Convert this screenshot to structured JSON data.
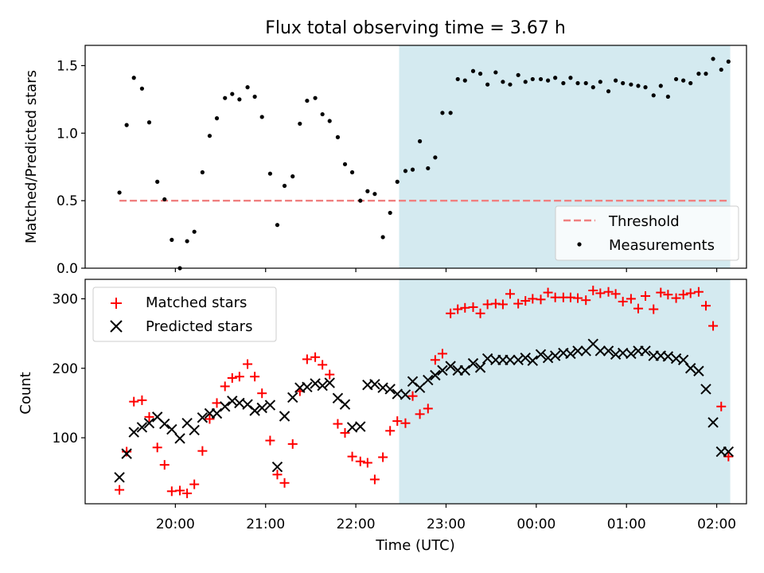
{
  "chart_data": {
    "title": "Flux total observing time = 3.67 h",
    "xlabel": "Time (UTC)",
    "x_ticks": [
      {
        "t": 20.0,
        "label": "20:00"
      },
      {
        "t": 21.0,
        "label": "21:00"
      },
      {
        "t": 22.0,
        "label": "22:00"
      },
      {
        "t": 23.0,
        "label": "23:00"
      },
      {
        "t": 24.0,
        "label": "00:00"
      },
      {
        "t": 25.0,
        "label": "01:00"
      },
      {
        "t": 26.0,
        "label": "02:00"
      }
    ],
    "x_range": [
      19.0,
      26.33
    ],
    "highlight_span": [
      22.48,
      26.15
    ],
    "highlight_color": "#d4eaf0",
    "x": [
      19.38,
      19.46,
      19.54,
      19.63,
      19.71,
      19.8,
      19.88,
      19.96,
      20.05,
      20.13,
      20.21,
      20.3,
      20.38,
      20.46,
      20.55,
      20.63,
      20.71,
      20.8,
      20.88,
      20.96,
      21.05,
      21.13,
      21.21,
      21.3,
      21.38,
      21.46,
      21.55,
      21.63,
      21.71,
      21.8,
      21.88,
      21.96,
      22.05,
      22.13,
      22.21,
      22.3,
      22.38,
      22.46,
      22.55,
      22.63,
      22.71,
      22.8,
      22.88,
      22.96,
      23.05,
      23.13,
      23.21,
      23.3,
      23.38,
      23.46,
      23.55,
      23.63,
      23.71,
      23.8,
      23.88,
      23.96,
      24.05,
      24.13,
      24.21,
      24.3,
      24.38,
      24.46,
      24.55,
      24.63,
      24.71,
      24.8,
      24.88,
      24.96,
      25.05,
      25.13,
      25.21,
      25.3,
      25.38,
      25.46,
      25.55,
      25.63,
      25.71,
      25.8,
      25.88,
      25.96,
      26.05,
      26.13
    ],
    "panels": [
      {
        "type": "scatter",
        "ylabel": "Matched/Predicted stars",
        "ylim": [
          0.0,
          1.65
        ],
        "y_ticks": [
          0.0,
          0.5,
          1.0,
          1.5
        ],
        "y_tick_labels": [
          "0.0",
          "0.5",
          "1.0",
          "1.5"
        ],
        "legend_position": "lower-right",
        "threshold": {
          "name": "Threshold",
          "value": 0.5,
          "x_range": [
            19.38,
            26.13
          ],
          "color": "#f08080"
        },
        "series": [
          {
            "name": "Measurements",
            "color": "#000000",
            "marker": "dot",
            "values": [
              0.56,
              1.06,
              1.41,
              1.33,
              1.08,
              0.64,
              0.51,
              0.21,
              0.0,
              0.2,
              0.27,
              0.71,
              0.98,
              1.11,
              1.26,
              1.29,
              1.25,
              1.34,
              1.27,
              1.12,
              0.7,
              0.32,
              0.61,
              0.68,
              1.07,
              1.24,
              1.26,
              1.14,
              1.09,
              0.97,
              0.77,
              0.71,
              0.5,
              0.57,
              0.55,
              0.23,
              0.41,
              0.64,
              0.72,
              0.73,
              0.94,
              0.74,
              0.82,
              1.15,
              1.15,
              1.4,
              1.39,
              1.46,
              1.44,
              1.36,
              1.45,
              1.38,
              1.36,
              1.43,
              1.38,
              1.4,
              1.4,
              1.39,
              1.41,
              1.37,
              1.41,
              1.37,
              1.37,
              1.34,
              1.38,
              1.31,
              1.39,
              1.37,
              1.36,
              1.35,
              1.34,
              1.28,
              1.35,
              1.27,
              1.4,
              1.39,
              1.37,
              1.44,
              1.44,
              1.55,
              1.47,
              1.53
            ]
          }
        ]
      },
      {
        "type": "scatter",
        "ylabel": "Count",
        "ylim": [
          5,
          328
        ],
        "y_ticks": [
          100,
          200,
          300
        ],
        "y_tick_labels": [
          "100",
          "200",
          "300"
        ],
        "legend_position": "upper-left",
        "series": [
          {
            "name": "Matched stars",
            "color": "#ff0000",
            "marker": "plus",
            "values": [
              25,
              80,
              152,
              154,
              130,
              86,
              61,
              23,
              24,
              20,
              33,
              81,
              127,
              150,
              174,
              186,
              188,
              206,
              188,
              164,
              96,
              47,
              35,
              91,
              167,
              213,
              216,
              205,
              191,
              120,
              107,
              73,
              66,
              64,
              40,
              72,
              110,
              124,
              121,
              160,
              134,
              142,
              212,
              221,
              279,
              285,
              287,
              288,
              279,
              292,
              293,
              292,
              307,
              293,
              297,
              300,
              299,
              309,
              302,
              302,
              302,
              301,
              298,
              312,
              308,
              310,
              307,
              296,
              300,
              286,
              304,
              285,
              309,
              306,
              301,
              306,
              308,
              310,
              290,
              261,
              145,
              73
            ]
          },
          {
            "name": "Predicted stars",
            "color": "#000000",
            "marker": "x",
            "values": [
              43,
              77,
              108,
              115,
              121,
              130,
              120,
              112,
              99,
              121,
              111,
              129,
              135,
              135,
              145,
              153,
              150,
              148,
              139,
              143,
              147,
              58,
              131,
              158,
              172,
              173,
              178,
              175,
              179,
              157,
              148,
              115,
              116,
              176,
              177,
              172,
              170,
              163,
              162,
              181,
              172,
              183,
              190,
              197,
              203,
              197,
              197,
              207,
              201,
              214,
              212,
              212,
              212,
              212,
              215,
              211,
              220,
              215,
              218,
              222,
              221,
              225,
              225,
              235,
              225,
              225,
              220,
              222,
              221,
              225,
              225,
              218,
              218,
              217,
              214,
              212,
              200,
              196,
              170,
              122,
              80,
              80
            ]
          }
        ]
      }
    ]
  }
}
